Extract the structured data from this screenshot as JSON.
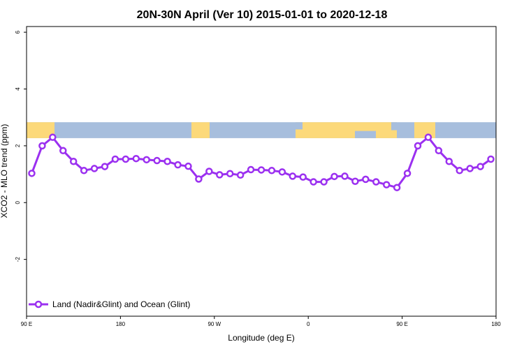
{
  "chart_data": {
    "type": "line",
    "title": "20N-30N April (Ver 10)   2015-01-01 to 2020-12-18",
    "xlabel": "Longitude (deg E)",
    "ylabel": "XCO2 - MLO trend (ppm)",
    "xlim": [
      90,
      540
    ],
    "ylim": [
      -4,
      6.2
    ],
    "x_ticks": [
      {
        "value": 90,
        "label": "90 E"
      },
      {
        "value": 180,
        "label": "180"
      },
      {
        "value": 270,
        "label": "90 W"
      },
      {
        "value": 360,
        "label": "0"
      },
      {
        "value": 450,
        "label": "90 E"
      },
      {
        "value": 540,
        "label": "180"
      }
    ],
    "y_ticks": [
      {
        "value": -2,
        "label": "-2"
      },
      {
        "value": 0,
        "label": "0"
      },
      {
        "value": 2,
        "label": "2"
      },
      {
        "value": 4,
        "label": "4"
      },
      {
        "value": 6,
        "label": "6"
      }
    ],
    "series": [
      {
        "name": "Land (Nadir&Glint) and Ocean (Glint)",
        "color": "#9b30f0",
        "x": [
          95,
          105,
          115,
          125,
          135,
          145,
          155,
          165,
          175,
          185,
          195,
          205,
          215,
          225,
          235,
          245,
          255,
          265,
          275,
          285,
          295,
          305,
          315,
          325,
          335,
          345,
          355,
          365,
          375,
          385,
          395,
          405,
          415,
          425,
          435,
          445,
          455,
          465,
          475,
          485,
          495,
          505,
          515,
          525,
          535
        ],
        "y": [
          1.03,
          2.0,
          2.3,
          1.83,
          1.45,
          1.13,
          1.2,
          1.27,
          1.53,
          1.53,
          1.55,
          1.51,
          1.48,
          1.45,
          1.33,
          1.28,
          0.83,
          1.1,
          0.98,
          1.02,
          0.97,
          1.16,
          1.15,
          1.13,
          1.08,
          0.93,
          0.9,
          0.73,
          0.73,
          0.92,
          0.93,
          0.75,
          0.82,
          0.73,
          0.63,
          0.53,
          1.03,
          2.0,
          2.3,
          1.83,
          1.45,
          1.13,
          1.2,
          1.27,
          1.53
        ]
      }
    ],
    "map_strip": {
      "y_range": [
        2.27,
        2.83
      ],
      "ocean_color": "#a7bedd",
      "land_color": "#fcd97a"
    },
    "legend_position": "bottom-left",
    "grid": false
  }
}
